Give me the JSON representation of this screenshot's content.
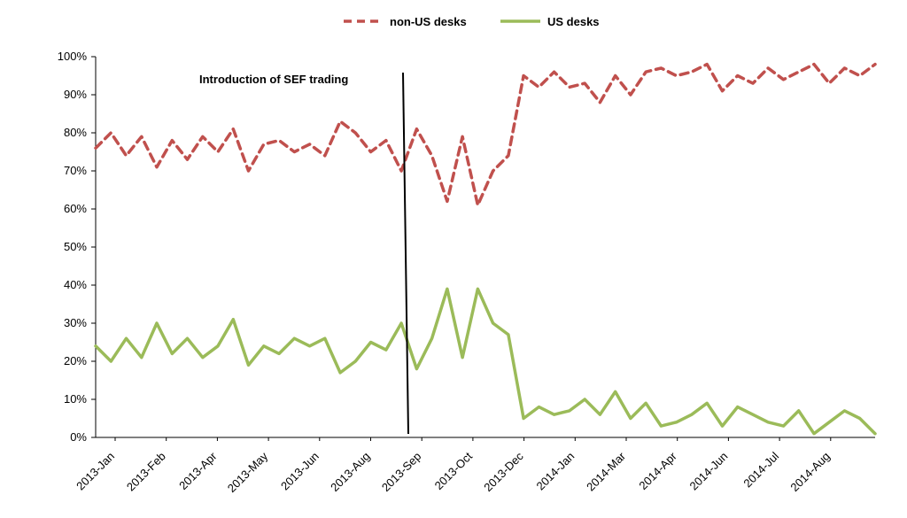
{
  "chart_data": {
    "type": "line",
    "title": "",
    "xlabel": "",
    "ylabel": "",
    "ylim": [
      0,
      100
    ],
    "y_ticks": [
      "0%",
      "10%",
      "20%",
      "30%",
      "40%",
      "50%",
      "60%",
      "70%",
      "80%",
      "90%",
      "100%"
    ],
    "x_tick_labels": [
      "2013-Jan",
      "2013-Feb",
      "2013-Apr",
      "2013-May",
      "2013-Jun",
      "2013-Aug",
      "2013-Sep",
      "2013-Oct",
      "2013-Dec",
      "2014-Jan",
      "2014-Mar",
      "2014-Apr",
      "2014-Jun",
      "2014-Jul",
      "2014-Aug"
    ],
    "grid": false,
    "legend_position": "top-center",
    "annotation": {
      "text": "Introduction of SEF trading",
      "x_position": "2013-Sep"
    },
    "series": [
      {
        "name": "non-US desks",
        "style": "dashed",
        "color": "#c0504d",
        "x": [
          "2013-Jan",
          "2013-Jan",
          "2013-Feb",
          "2013-Feb",
          "2013-Feb",
          "2013-Feb",
          "2013-Feb",
          "2013-Feb",
          "2013-Apr",
          "2013-Apr",
          "2013-Apr",
          "2013-Apr",
          "2013-May",
          "2013-May",
          "2013-May",
          "2013-May",
          "2013-Jun",
          "2013-Jun",
          "2013-Jun",
          "2013-Jun",
          "2013-Aug",
          "2013-Aug",
          "2013-Aug",
          "2013-Aug",
          "2013-Aug",
          "2013-Sep",
          "2013-Sep",
          "2013-Sep",
          "2013-Oct",
          "2013-Oct",
          "2013-Oct",
          "2013-Dec",
          "2013-Dec",
          "2013-Dec",
          "2014-Jan",
          "2014-Jan",
          "2014-Jan",
          "2014-Mar",
          "2014-Mar",
          "2014-Mar",
          "2014-Apr",
          "2014-Apr",
          "2014-Apr",
          "2014-Jun",
          "2014-Jun",
          "2014-Jun",
          "2014-Jul",
          "2014-Jul",
          "2014-Jul",
          "2014-Aug",
          "2014-Aug",
          "2014-Aug"
        ],
        "values": [
          76,
          80,
          74,
          79,
          71,
          78,
          73,
          79,
          75,
          81,
          70,
          77,
          78,
          75,
          77,
          74,
          83,
          80,
          75,
          78,
          70,
          81,
          74,
          62,
          79,
          61,
          70,
          74,
          95,
          92,
          96,
          92,
          93,
          88,
          95,
          90,
          96,
          97,
          95,
          96,
          98,
          91,
          95,
          93,
          97,
          94,
          96,
          98,
          93,
          97,
          95,
          98
        ]
      },
      {
        "name": "US desks",
        "style": "solid",
        "color": "#9bbb59",
        "x": [
          "2013-Jan",
          "2013-Jan",
          "2013-Feb",
          "2013-Feb",
          "2013-Feb",
          "2013-Feb",
          "2013-Feb",
          "2013-Feb",
          "2013-Apr",
          "2013-Apr",
          "2013-Apr",
          "2013-Apr",
          "2013-May",
          "2013-May",
          "2013-May",
          "2013-May",
          "2013-Jun",
          "2013-Jun",
          "2013-Jun",
          "2013-Jun",
          "2013-Aug",
          "2013-Aug",
          "2013-Aug",
          "2013-Aug",
          "2013-Aug",
          "2013-Sep",
          "2013-Sep",
          "2013-Sep",
          "2013-Oct",
          "2013-Oct",
          "2013-Oct",
          "2013-Dec",
          "2013-Dec",
          "2013-Dec",
          "2014-Jan",
          "2014-Jan",
          "2014-Jan",
          "2014-Mar",
          "2014-Mar",
          "2014-Mar",
          "2014-Apr",
          "2014-Apr",
          "2014-Apr",
          "2014-Jun",
          "2014-Jun",
          "2014-Jun",
          "2014-Jul",
          "2014-Jul",
          "2014-Jul",
          "2014-Aug",
          "2014-Aug",
          "2014-Aug"
        ],
        "values": [
          24,
          20,
          26,
          21,
          30,
          22,
          26,
          21,
          24,
          31,
          19,
          24,
          22,
          26,
          24,
          26,
          17,
          20,
          25,
          23,
          30,
          18,
          26,
          39,
          21,
          39,
          30,
          27,
          5,
          8,
          6,
          7,
          10,
          6,
          12,
          5,
          9,
          3,
          4,
          6,
          9,
          3,
          8,
          6,
          4,
          3,
          7,
          1,
          4,
          7,
          5,
          1
        ]
      }
    ]
  }
}
